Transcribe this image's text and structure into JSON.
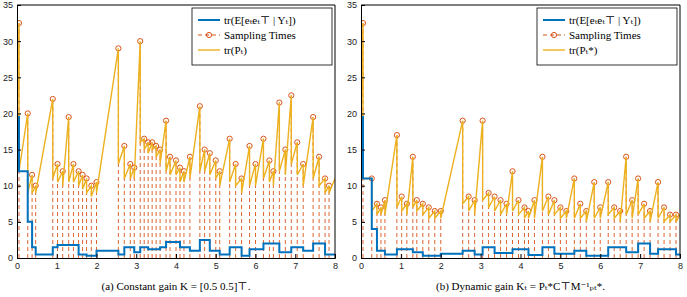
{
  "chart_data": [
    {
      "type": "line",
      "title": "(a) Constant gain K = [0.5 0.5]⊤.",
      "xlim": [
        0,
        8
      ],
      "xticks": [
        0,
        1,
        2,
        3,
        4,
        5,
        6,
        7,
        8
      ],
      "ylim": [
        0,
        35
      ],
      "yticks": [
        0,
        5,
        10,
        15,
        20,
        25,
        30,
        35
      ],
      "grid": false,
      "legend": "top-right",
      "series": [
        {
          "name": "tr(E[eₜeₜ⊤ | Yₜ])",
          "type": "step",
          "color": "#0072BD",
          "line_style": "solid",
          "x": [
            0,
            0.05,
            0.27,
            0.38,
            0.47,
            0.9,
            1.02,
            1.3,
            1.55,
            1.75,
            2,
            2.55,
            2.7,
            2.95,
            3.1,
            3.3,
            3.6,
            3.75,
            4.1,
            4.35,
            4.6,
            4.85,
            5.1,
            5.35,
            5.65,
            5.85,
            6.2,
            6.6,
            6.9,
            7.2,
            7.45,
            7.75,
            8
          ],
          "values": [
            19.5,
            12,
            5,
            1.5,
            0.5,
            1.5,
            1.8,
            1.8,
            0.5,
            0.3,
            1,
            0.5,
            1.5,
            0.8,
            1.5,
            1.2,
            1.5,
            2.2,
            1.5,
            1,
            2.5,
            1,
            0.5,
            1.5,
            0.3,
            1.2,
            2,
            0.8,
            1.5,
            1,
            2,
            0.5,
            0.5
          ]
        },
        {
          "name": "Sampling Times",
          "type": "stem",
          "color": "#D95319",
          "line_style": "dashed",
          "marker": "circle",
          "x": [
            0.05,
            0.27,
            0.38,
            0.47,
            0.9,
            1.02,
            1.15,
            1.3,
            1.42,
            1.55,
            1.65,
            1.75,
            1.87,
            2,
            2.55,
            2.7,
            2.85,
            2.95,
            3.1,
            3.2,
            3.3,
            3.4,
            3.5,
            3.6,
            3.75,
            3.85,
            4,
            4.1,
            4.2,
            4.35,
            4.6,
            4.72,
            4.85,
            5,
            5.1,
            5.35,
            5.5,
            5.65,
            5.85,
            6,
            6.2,
            6.35,
            6.45,
            6.6,
            6.75,
            6.9,
            7.05,
            7.2,
            7.45,
            7.6,
            7.75,
            7.85
          ],
          "values": [
            32.5,
            20,
            11.5,
            10,
            22,
            13,
            12,
            19.5,
            13,
            12,
            11.5,
            11,
            10,
            10.5,
            29,
            15.5,
            13,
            12.5,
            30,
            16.5,
            16,
            16,
            15.5,
            15,
            19,
            14,
            13.5,
            12.5,
            12,
            14,
            21,
            15,
            14.5,
            13.5,
            12,
            16.5,
            13,
            11,
            15.5,
            13,
            16.5,
            13.5,
            12,
            21.5,
            15,
            22.5,
            16,
            13,
            19.5,
            14,
            11,
            10
          ]
        },
        {
          "name": "tr(Pₜ)",
          "type": "line",
          "color": "#EDB120",
          "line_style": "solid",
          "x": [
            0,
            0.05,
            0.05,
            0.27,
            0.27,
            0.38,
            0.38,
            0.47,
            0.47,
            0.9,
            0.9,
            1.02,
            1.02,
            1.15,
            1.15,
            1.3,
            1.3,
            1.42,
            1.42,
            1.55,
            1.55,
            1.65,
            1.65,
            1.75,
            1.75,
            1.87,
            1.87,
            2,
            2,
            2.55,
            2.55,
            2.7,
            2.7,
            2.85,
            2.85,
            2.95,
            2.95,
            3.1,
            3.1,
            3.2,
            3.2,
            3.3,
            3.3,
            3.4,
            3.4,
            3.5,
            3.5,
            3.6,
            3.6,
            3.75,
            3.75,
            3.85,
            3.85,
            4,
            4,
            4.1,
            4.1,
            4.2,
            4.2,
            4.35,
            4.35,
            4.6,
            4.6,
            4.72,
            4.72,
            4.85,
            4.85,
            5,
            5,
            5.1,
            5.1,
            5.35,
            5.35,
            5.5,
            5.5,
            5.65,
            5.65,
            5.85,
            5.85,
            6,
            6,
            6.2,
            6.2,
            6.35,
            6.35,
            6.45,
            6.45,
            6.6,
            6.6,
            6.75,
            6.75,
            6.9,
            6.9,
            7.05,
            7.05,
            7.2,
            7.2,
            7.45,
            7.45,
            7.6,
            7.6,
            7.75,
            7.75,
            7.85,
            7.85,
            8
          ],
          "values": [
            19.5,
            32.5,
            12,
            20,
            9,
            11.5,
            9,
            10,
            9,
            22,
            11,
            13,
            10.5,
            12,
            10,
            19.5,
            10.5,
            13,
            10.5,
            12,
            10,
            11.5,
            9.5,
            11,
            9,
            10,
            8.5,
            10.5,
            9,
            29,
            13,
            15.5,
            11,
            13,
            11,
            12.5,
            11,
            30,
            16,
            16.5,
            15,
            16,
            14.5,
            16,
            15,
            15.5,
            14,
            15,
            13,
            19,
            12,
            14,
            11.5,
            13.5,
            11.5,
            12.5,
            10.5,
            12,
            10.5,
            14,
            11,
            21,
            12,
            15,
            12,
            14.5,
            11.5,
            13.5,
            11,
            12,
            10,
            16.5,
            10.5,
            13,
            10,
            11,
            9,
            15.5,
            10,
            13,
            10,
            16.5,
            11,
            13.5,
            10.5,
            12,
            10,
            21.5,
            12,
            15,
            11.5,
            22.5,
            13,
            16,
            11.5,
            13,
            10,
            19.5,
            11,
            14,
            10,
            11,
            9,
            10,
            9,
            11
          ]
        }
      ]
    },
    {
      "type": "line",
      "title": "(b) Dynamic gain Kₜ = Pₜ*C⊤M⁻¹ₚₜ*.",
      "xlim": [
        0,
        8
      ],
      "xticks": [
        0,
        1,
        2,
        3,
        4,
        5,
        6,
        7,
        8
      ],
      "ylim": [
        0,
        35
      ],
      "yticks": [
        0,
        5,
        10,
        15,
        20,
        25,
        30,
        35
      ],
      "grid": false,
      "legend": "top-right",
      "series": [
        {
          "name": "tr(E[eₜeₜ⊤ | Yₜ])",
          "type": "step",
          "color": "#0072BD",
          "line_style": "solid",
          "x": [
            0,
            0.05,
            0.27,
            0.4,
            0.6,
            0.9,
            1.3,
            1.55,
            2,
            2.55,
            2.85,
            3.05,
            3.35,
            3.8,
            4.2,
            4.55,
            4.85,
            5.35,
            5.65,
            6.2,
            6.65,
            6.95,
            7.25,
            7.45,
            7.9,
            8
          ],
          "values": [
            19.5,
            11,
            4,
            1,
            0.5,
            1.2,
            0.8,
            0.3,
            0.6,
            1,
            0.5,
            1.5,
            0.7,
            1.2,
            0.4,
            1.5,
            0.6,
            1,
            0.3,
            1.5,
            0.8,
            2,
            0.6,
            1.2,
            0.5,
            0.5
          ]
        },
        {
          "name": "Sampling Times",
          "type": "stem",
          "color": "#D95319",
          "line_style": "dashed",
          "marker": "circle",
          "x": [
            0.05,
            0.27,
            0.4,
            0.5,
            0.6,
            0.9,
            1.02,
            1.15,
            1.3,
            1.4,
            1.55,
            1.7,
            1.85,
            2,
            2.55,
            2.7,
            2.85,
            3.05,
            3.2,
            3.35,
            3.5,
            3.65,
            3.8,
            3.95,
            4.1,
            4.2,
            4.35,
            4.55,
            4.7,
            4.85,
            5,
            5.15,
            5.35,
            5.5,
            5.65,
            5.85,
            6,
            6.2,
            6.35,
            6.5,
            6.65,
            6.8,
            6.95,
            7.1,
            7.25,
            7.45,
            7.6,
            7.75,
            7.9
          ],
          "values": [
            32.5,
            11,
            7.5,
            7,
            8,
            17,
            8.5,
            7.5,
            14,
            8,
            7.5,
            7,
            6.5,
            6.5,
            19,
            8.5,
            8,
            19,
            9,
            8.5,
            8,
            7.5,
            12,
            8,
            7,
            6.5,
            8,
            14,
            8.5,
            8,
            7,
            6.5,
            11,
            7.5,
            6.5,
            10.5,
            7,
            10.5,
            7,
            6.5,
            14,
            8,
            11,
            7.5,
            6.5,
            10.5,
            7,
            6,
            6
          ]
        },
        {
          "name": "tr(Pₜ*)",
          "type": "line",
          "color": "#EDB120",
          "line_style": "solid",
          "x": [
            0,
            0.05,
            0.05,
            0.27,
            0.27,
            0.4,
            0.4,
            0.5,
            0.5,
            0.6,
            0.6,
            0.9,
            0.9,
            1.02,
            1.02,
            1.15,
            1.15,
            1.3,
            1.3,
            1.4,
            1.4,
            1.55,
            1.55,
            1.7,
            1.7,
            1.85,
            1.85,
            2,
            2,
            2.55,
            2.55,
            2.7,
            2.7,
            2.85,
            2.85,
            3.05,
            3.05,
            3.2,
            3.2,
            3.35,
            3.35,
            3.5,
            3.5,
            3.65,
            3.65,
            3.8,
            3.8,
            3.95,
            3.95,
            4.1,
            4.1,
            4.2,
            4.2,
            4.35,
            4.35,
            4.55,
            4.55,
            4.7,
            4.7,
            4.85,
            4.85,
            5,
            5,
            5.15,
            5.15,
            5.35,
            5.35,
            5.5,
            5.5,
            5.65,
            5.65,
            5.85,
            5.85,
            6,
            6,
            6.2,
            6.2,
            6.35,
            6.35,
            6.5,
            6.5,
            6.65,
            6.65,
            6.8,
            6.8,
            6.95,
            6.95,
            7.1,
            7.1,
            7.25,
            7.25,
            7.45,
            7.45,
            7.6,
            7.6,
            7.75,
            7.75,
            7.9,
            7.9,
            8
          ],
          "values": [
            19.5,
            32.5,
            11,
            11,
            6.5,
            7.5,
            6,
            7,
            6,
            8,
            6,
            17,
            7,
            8.5,
            6.5,
            7.5,
            6,
            14,
            7,
            8,
            6.5,
            7.5,
            6,
            7,
            5.5,
            6.5,
            5.5,
            6.5,
            5.5,
            19,
            7.5,
            8.5,
            6.5,
            8,
            6,
            19,
            8,
            9,
            7,
            8.5,
            6.5,
            8,
            6,
            7.5,
            6,
            12,
            6.5,
            8,
            6,
            7,
            5.5,
            6.5,
            5.5,
            8,
            5.5,
            14,
            6.5,
            8.5,
            6,
            8,
            6,
            7,
            5.5,
            6.5,
            5.5,
            11,
            5.5,
            7.5,
            5.5,
            6.5,
            5,
            10.5,
            5.5,
            7,
            5.5,
            10.5,
            6,
            7,
            5.5,
            6.5,
            5,
            14,
            6,
            8,
            5.5,
            11,
            6,
            7.5,
            5.5,
            6.5,
            5,
            10.5,
            5.5,
            7,
            5,
            6,
            5,
            6,
            5,
            6
          ]
        }
      ]
    }
  ]
}
